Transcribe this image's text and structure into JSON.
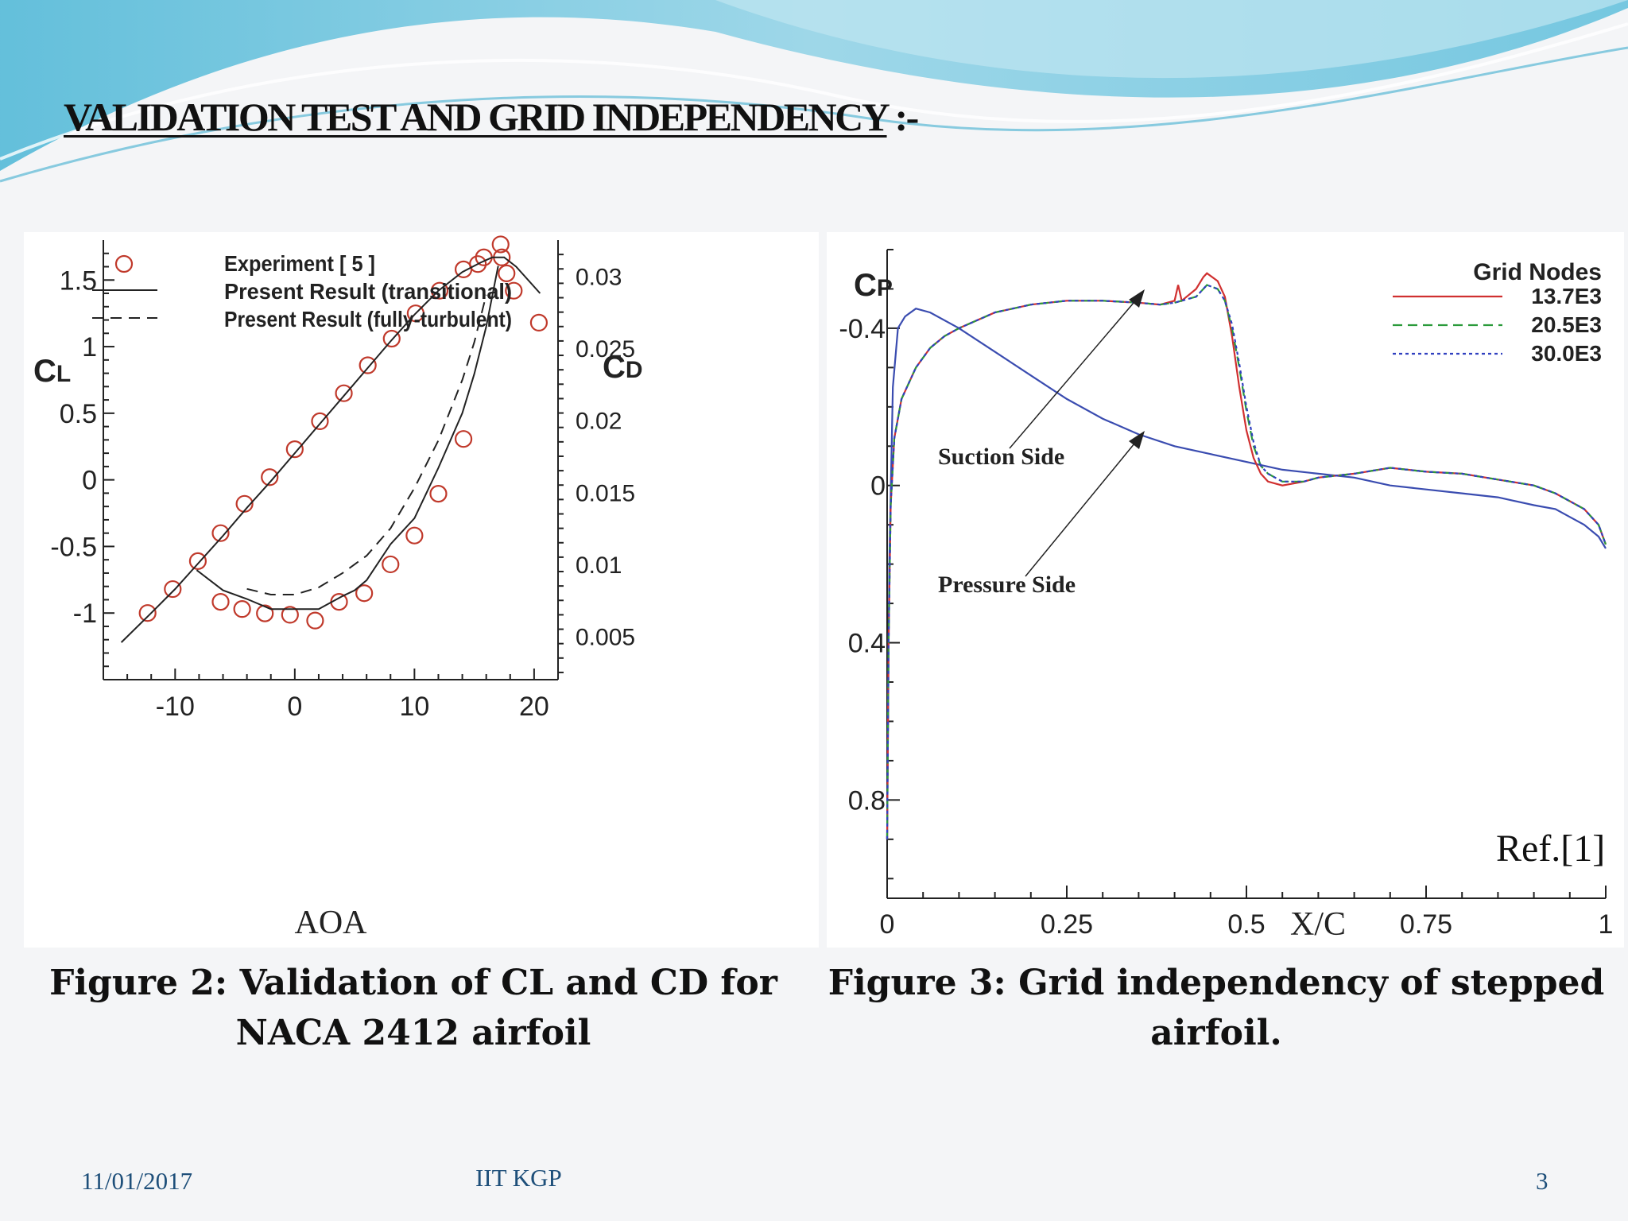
{
  "slide": {
    "title": "VALIDATION TEST AND GRID INDEPENDENCY",
    "title_suffix": " :-",
    "footer_date": "11/01/2017",
    "footer_org": "IIT KGP",
    "page_number": "3",
    "colors": {
      "header_wave": "#7fc9e0",
      "footer_text": "#1e4f7a"
    }
  },
  "figure2": {
    "caption_line1": "Figure 2: Validation of CL and CD for",
    "caption_line2": "NACA 2412 airfoil"
  },
  "figure3": {
    "caption_line1": "Figure 3: Grid independency of stepped",
    "caption_line2": "airfoil.",
    "ref_label": "Ref.[1]"
  },
  "chart_data": [
    {
      "type": "line",
      "xlabel": "AOA",
      "ylabel": "CL",
      "y2label": "CD",
      "xlim": [
        -16,
        22
      ],
      "ylim": [
        -1.5,
        1.8
      ],
      "y2lim": [
        0.002,
        0.0325
      ],
      "xticks": [
        "-10",
        "0",
        "10",
        "20"
      ],
      "yticks": [
        "1.5",
        "1",
        "0.5",
        "0",
        "-0.5",
        "-1"
      ],
      "y2ticks": [
        "0.03",
        "0.025",
        "0.02",
        "0.015",
        "0.01",
        "0.005"
      ],
      "legend_position": "top-left",
      "legend": [
        "Experiment [ 5 ]",
        "Present Result (transitional)",
        "Present Result (fully-turbulent)"
      ],
      "series": [
        {
          "name": "Experiment [ 5 ]",
          "axis": "CL",
          "style": "circle",
          "x": [
            -12.3,
            -10.2,
            -8.1,
            -6.2,
            -4.2,
            -2.1,
            0,
            2.1,
            4.1,
            6.1,
            8.1,
            10.1,
            12.1,
            14.1,
            15.3,
            15.8,
            17.3,
            17.7,
            18.3,
            20.4
          ],
          "y": [
            -1.0,
            -0.82,
            -0.61,
            -0.4,
            -0.18,
            0.02,
            0.23,
            0.44,
            0.65,
            0.86,
            1.06,
            1.25,
            1.42,
            1.58,
            1.62,
            1.67,
            1.67,
            1.55,
            1.42,
            1.18
          ]
        },
        {
          "name": "Present Result (transitional)",
          "axis": "CL",
          "style": "solid",
          "x": [
            -14.5,
            -12,
            -10,
            -8,
            -6,
            -4,
            -2,
            0,
            2,
            4,
            6,
            8,
            10,
            12,
            14,
            15.5,
            16.5,
            17.5,
            18.5,
            20.5
          ],
          "y": [
            -1.22,
            -1.0,
            -0.82,
            -0.62,
            -0.42,
            -0.21,
            -0.01,
            0.2,
            0.41,
            0.62,
            0.83,
            1.04,
            1.24,
            1.42,
            1.56,
            1.63,
            1.67,
            1.67,
            1.6,
            1.4
          ]
        },
        {
          "name": "Experiment [ 5 ]",
          "axis": "CD",
          "style": "circle",
          "x": [
            -6.2,
            -4.4,
            -2.5,
            -0.4,
            1.7,
            3.7,
            5.8,
            8.0,
            10.0,
            12.0,
            14.1,
            17.2
          ],
          "y": [
            0.0074,
            0.0069,
            0.0066,
            0.0065,
            0.0061,
            0.0074,
            0.008,
            0.01,
            0.012,
            0.0149,
            0.0187,
            0.0322
          ]
        },
        {
          "name": "Present Result (transitional)",
          "axis": "CD",
          "style": "solid",
          "x": [
            -8.2,
            -6,
            -4,
            -2,
            0,
            2,
            4,
            5,
            6,
            8,
            10,
            12,
            14,
            15,
            16,
            17
          ],
          "y": [
            0.0096,
            0.0082,
            0.0076,
            0.0069,
            0.0069,
            0.0069,
            0.0078,
            0.0082,
            0.0089,
            0.0114,
            0.0132,
            0.0167,
            0.0205,
            0.0232,
            0.0265,
            0.0307
          ]
        },
        {
          "name": "Present Result (fully-turbulent)",
          "axis": "CD",
          "style": "dashed",
          "x": [
            -4,
            -2,
            0,
            2,
            4,
            6,
            8,
            10,
            12,
            14,
            15,
            16
          ],
          "y": [
            0.0083,
            0.0079,
            0.0079,
            0.0084,
            0.0094,
            0.0106,
            0.0125,
            0.0153,
            0.0186,
            0.0228,
            0.0254,
            0.0287
          ]
        }
      ]
    },
    {
      "type": "line",
      "xlabel": "X/C",
      "ylabel": "CP",
      "xlim": [
        0,
        1
      ],
      "ylim": [
        -0.6,
        1.05
      ],
      "y_inverted": true,
      "xticks": [
        "0",
        "0.25",
        "0.5",
        "0.75",
        "1"
      ],
      "yticks": [
        "-0.4",
        "0",
        "0.4",
        "0.8"
      ],
      "legend_title": "Grid Nodes",
      "legend_position": "top-right",
      "legend": [
        "13.7E3",
        "20.5E3",
        "30.0E3"
      ],
      "annotations": [
        "Suction Side",
        "Pressure Side"
      ],
      "series": [
        {
          "name": "13.7E3",
          "surface": "suction",
          "color": "#d03030",
          "style": "solid",
          "x": [
            0,
            0.002,
            0.005,
            0.01,
            0.02,
            0.04,
            0.06,
            0.08,
            0.1,
            0.15,
            0.2,
            0.25,
            0.3,
            0.35,
            0.38,
            0.4,
            0.405,
            0.41,
            0.43,
            0.44,
            0.445,
            0.46,
            0.47,
            0.48,
            0.49,
            0.5,
            0.51,
            0.52,
            0.53,
            0.55,
            0.58,
            0.6,
            0.65,
            0.7,
            0.75,
            0.8,
            0.85,
            0.9,
            0.93,
            0.95,
            0.97,
            0.99,
            1.0
          ],
          "y": [
            0.9,
            0.4,
            0.05,
            -0.12,
            -0.22,
            -0.3,
            -0.35,
            -0.38,
            -0.4,
            -0.44,
            -0.46,
            -0.47,
            -0.47,
            -0.465,
            -0.46,
            -0.47,
            -0.51,
            -0.47,
            -0.5,
            -0.53,
            -0.54,
            -0.52,
            -0.48,
            -0.38,
            -0.25,
            -0.14,
            -0.07,
            -0.03,
            -0.01,
            0.0,
            -0.01,
            -0.02,
            -0.03,
            -0.045,
            -0.035,
            -0.03,
            -0.015,
            0.0,
            0.02,
            0.04,
            0.06,
            0.1,
            0.15
          ]
        },
        {
          "name": "20.5E3",
          "surface": "suction",
          "color": "#2a9a3a",
          "style": "dashed",
          "x": [
            0,
            0.002,
            0.005,
            0.01,
            0.02,
            0.04,
            0.06,
            0.08,
            0.1,
            0.15,
            0.2,
            0.25,
            0.3,
            0.35,
            0.38,
            0.4,
            0.43,
            0.44,
            0.445,
            0.46,
            0.47,
            0.48,
            0.49,
            0.5,
            0.51,
            0.52,
            0.53,
            0.55,
            0.58,
            0.6,
            0.65,
            0.7,
            0.75,
            0.8,
            0.85,
            0.9,
            0.93,
            0.95,
            0.97,
            0.99,
            1.0
          ],
          "y": [
            0.9,
            0.4,
            0.05,
            -0.12,
            -0.22,
            -0.3,
            -0.35,
            -0.38,
            -0.4,
            -0.44,
            -0.46,
            -0.47,
            -0.47,
            -0.465,
            -0.46,
            -0.465,
            -0.48,
            -0.5,
            -0.51,
            -0.5,
            -0.47,
            -0.4,
            -0.3,
            -0.19,
            -0.1,
            -0.05,
            -0.03,
            -0.01,
            -0.01,
            -0.02,
            -0.03,
            -0.045,
            -0.035,
            -0.03,
            -0.015,
            0.0,
            0.02,
            0.04,
            0.06,
            0.1,
            0.15
          ]
        },
        {
          "name": "30.0E3",
          "surface": "suction",
          "color": "#3040c0",
          "style": "dotted",
          "x": [
            0,
            0.002,
            0.005,
            0.01,
            0.02,
            0.04,
            0.06,
            0.08,
            0.1,
            0.15,
            0.2,
            0.25,
            0.3,
            0.35,
            0.38,
            0.4,
            0.43,
            0.44,
            0.445,
            0.46,
            0.47,
            0.48,
            0.49,
            0.5,
            0.51,
            0.52,
            0.53,
            0.55,
            0.58,
            0.6,
            0.65,
            0.7,
            0.75,
            0.8,
            0.85,
            0.9,
            0.93,
            0.95,
            0.97,
            0.99,
            1.0
          ],
          "y": [
            0.9,
            0.4,
            0.05,
            -0.12,
            -0.22,
            -0.3,
            -0.35,
            -0.38,
            -0.4,
            -0.44,
            -0.46,
            -0.47,
            -0.47,
            -0.465,
            -0.46,
            -0.465,
            -0.48,
            -0.5,
            -0.51,
            -0.5,
            -0.47,
            -0.41,
            -0.31,
            -0.2,
            -0.11,
            -0.05,
            -0.03,
            -0.01,
            -0.01,
            -0.02,
            -0.03,
            -0.045,
            -0.035,
            -0.03,
            -0.015,
            0.0,
            0.02,
            0.04,
            0.06,
            0.1,
            0.15
          ]
        },
        {
          "name": "Pressure side",
          "surface": "pressure",
          "color": "#3a4cb0",
          "style": "solid",
          "x": [
            0,
            0.003,
            0.008,
            0.015,
            0.025,
            0.04,
            0.06,
            0.1,
            0.15,
            0.2,
            0.25,
            0.3,
            0.35,
            0.4,
            0.45,
            0.5,
            0.55,
            0.6,
            0.65,
            0.7,
            0.75,
            0.8,
            0.85,
            0.9,
            0.93,
            0.95,
            0.97,
            0.99,
            1.0
          ],
          "y": [
            0.9,
            0.2,
            -0.25,
            -0.4,
            -0.43,
            -0.45,
            -0.44,
            -0.4,
            -0.34,
            -0.28,
            -0.22,
            -0.17,
            -0.13,
            -0.1,
            -0.08,
            -0.06,
            -0.04,
            -0.03,
            -0.02,
            0.0,
            0.01,
            0.02,
            0.03,
            0.05,
            0.06,
            0.08,
            0.1,
            0.13,
            0.16
          ]
        }
      ]
    }
  ]
}
